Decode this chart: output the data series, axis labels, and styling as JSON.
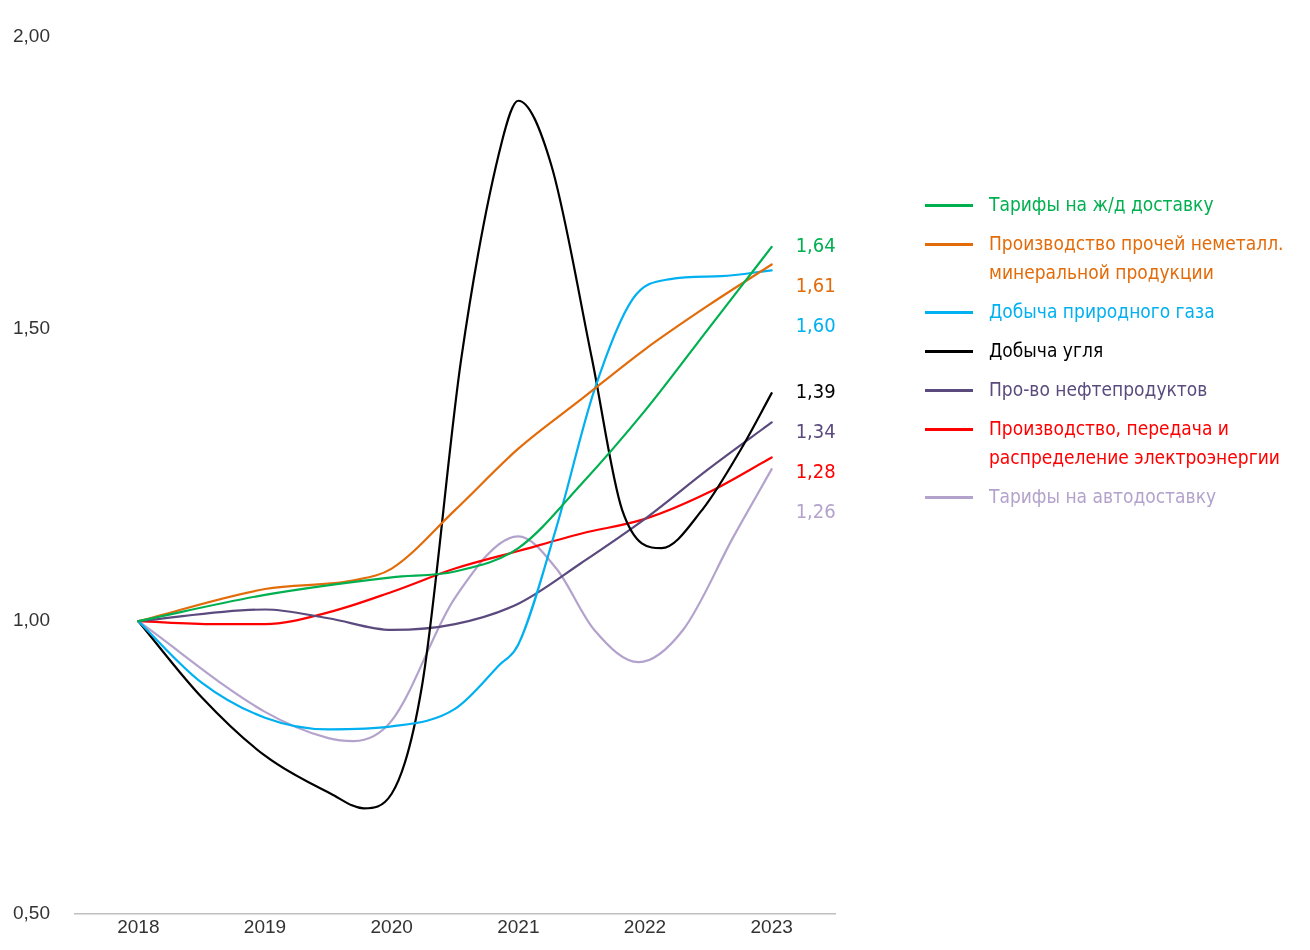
{
  "chart_data": {
    "type": "line",
    "xlim": [
      2017.5,
      2023.5
    ],
    "xticks": [
      2018,
      2019,
      2020,
      2021,
      2022,
      2023
    ],
    "ylim": [
      0.5,
      2
    ],
    "yticks": [
      {
        "value": 0.5,
        "label": "0,50"
      },
      {
        "value": 1,
        "label": "1,00"
      },
      {
        "value": 1.5,
        "label": "1,50"
      },
      {
        "value": 2,
        "label": "2,00"
      }
    ],
    "grid": false,
    "legend": "right",
    "marker": "none",
    "line_style": "solid",
    "series": [
      {
        "name": "Тарифы на ж/д доставку",
        "color": "#00b050",
        "x": [
          2018,
          2019,
          2020,
          2020.5,
          2021,
          2021.5,
          2022,
          2022.5,
          2023
        ],
        "values": [
          1.0,
          1.045,
          1.075,
          1.085,
          1.125,
          1.235,
          1.36,
          1.5,
          1.64
        ],
        "value_labels": [
          null,
          null,
          null,
          null,
          null,
          null,
          null,
          null,
          "1,64"
        ]
      },
      {
        "name": "Производство прочей неметалл. минеральной продукции",
        "color": "#e36c0a",
        "x": [
          2018,
          2019,
          2019.7,
          2020,
          2020.5,
          2021,
          2021.5,
          2022,
          2022.5,
          2023
        ],
        "values": [
          1.0,
          1.055,
          1.07,
          1.09,
          1.19,
          1.295,
          1.38,
          1.465,
          1.54,
          1.61
        ],
        "value_labels": [
          null,
          null,
          null,
          null,
          null,
          null,
          null,
          null,
          null,
          "1,61"
        ]
      },
      {
        "name": "Добыча природного газа",
        "color": "#00b0f0",
        "x": [
          2018,
          2018.5,
          2019,
          2019.5,
          2020,
          2020.5,
          2020.85,
          2021,
          2021.3,
          2021.6,
          2021.9,
          2022.2,
          2022.6,
          2023
        ],
        "values": [
          1.0,
          0.895,
          0.835,
          0.815,
          0.82,
          0.85,
          0.925,
          0.96,
          1.16,
          1.395,
          1.55,
          1.585,
          1.59,
          1.6
        ],
        "value_labels": [
          null,
          null,
          null,
          null,
          null,
          null,
          null,
          null,
          null,
          null,
          null,
          null,
          null,
          "1,60"
        ]
      },
      {
        "name": "Добыча угля",
        "color": "#000000",
        "x": [
          2018,
          2018.5,
          2019,
          2019.52,
          2019.78,
          2020,
          2020.24,
          2020.55,
          2020.87,
          2021,
          2021.26,
          2021.58,
          2021.82,
          2022.13,
          2022.45,
          2022.76,
          2023
        ],
        "values": [
          1.0,
          0.87,
          0.77,
          0.705,
          0.68,
          0.705,
          0.89,
          1.45,
          1.82,
          1.89,
          1.78,
          1.45,
          1.19,
          1.125,
          1.19,
          1.295,
          1.39
        ],
        "value_labels": [
          null,
          null,
          null,
          null,
          null,
          null,
          null,
          null,
          null,
          null,
          null,
          null,
          null,
          null,
          null,
          null,
          "1,39"
        ]
      },
      {
        "name": "Про-во нефтепродуктов",
        "color": "#5b4a7e",
        "x": [
          2018,
          2019,
          2019.5,
          2020,
          2020.5,
          2021,
          2021.5,
          2022,
          2022.5,
          2023
        ],
        "values": [
          1.0,
          1.02,
          1.005,
          0.985,
          0.995,
          1.03,
          1.1,
          1.175,
          1.26,
          1.34
        ],
        "value_labels": [
          null,
          null,
          null,
          null,
          null,
          null,
          null,
          null,
          null,
          "1,34"
        ]
      },
      {
        "name": "Производство, передача и распределение электроэнергии",
        "color": "#ff0000",
        "x": [
          2018,
          2018.6,
          2019,
          2019.5,
          2020,
          2020.5,
          2021,
          2021.5,
          2022,
          2022.5,
          2023
        ],
        "values": [
          1.0,
          0.995,
          0.995,
          1.015,
          1.05,
          1.09,
          1.12,
          1.15,
          1.175,
          1.22,
          1.28
        ],
        "value_labels": [
          null,
          null,
          null,
          null,
          null,
          null,
          null,
          null,
          null,
          null,
          "1,28"
        ]
      },
      {
        "name": "Тарифы на автодоставку",
        "color": "#b3a2cc",
        "x": [
          2018,
          2019,
          2019.5,
          2019.7,
          2020,
          2020.5,
          2021,
          2021.3,
          2021.6,
          2021.95,
          2022.3,
          2022.7,
          2023
        ],
        "values": [
          1.0,
          0.845,
          0.8,
          0.795,
          0.83,
          1.04,
          1.145,
          1.09,
          0.985,
          0.93,
          0.985,
          1.145,
          1.26
        ],
        "value_labels": [
          null,
          null,
          null,
          null,
          null,
          null,
          null,
          null,
          null,
          null,
          null,
          null,
          "1,26"
        ]
      }
    ]
  }
}
